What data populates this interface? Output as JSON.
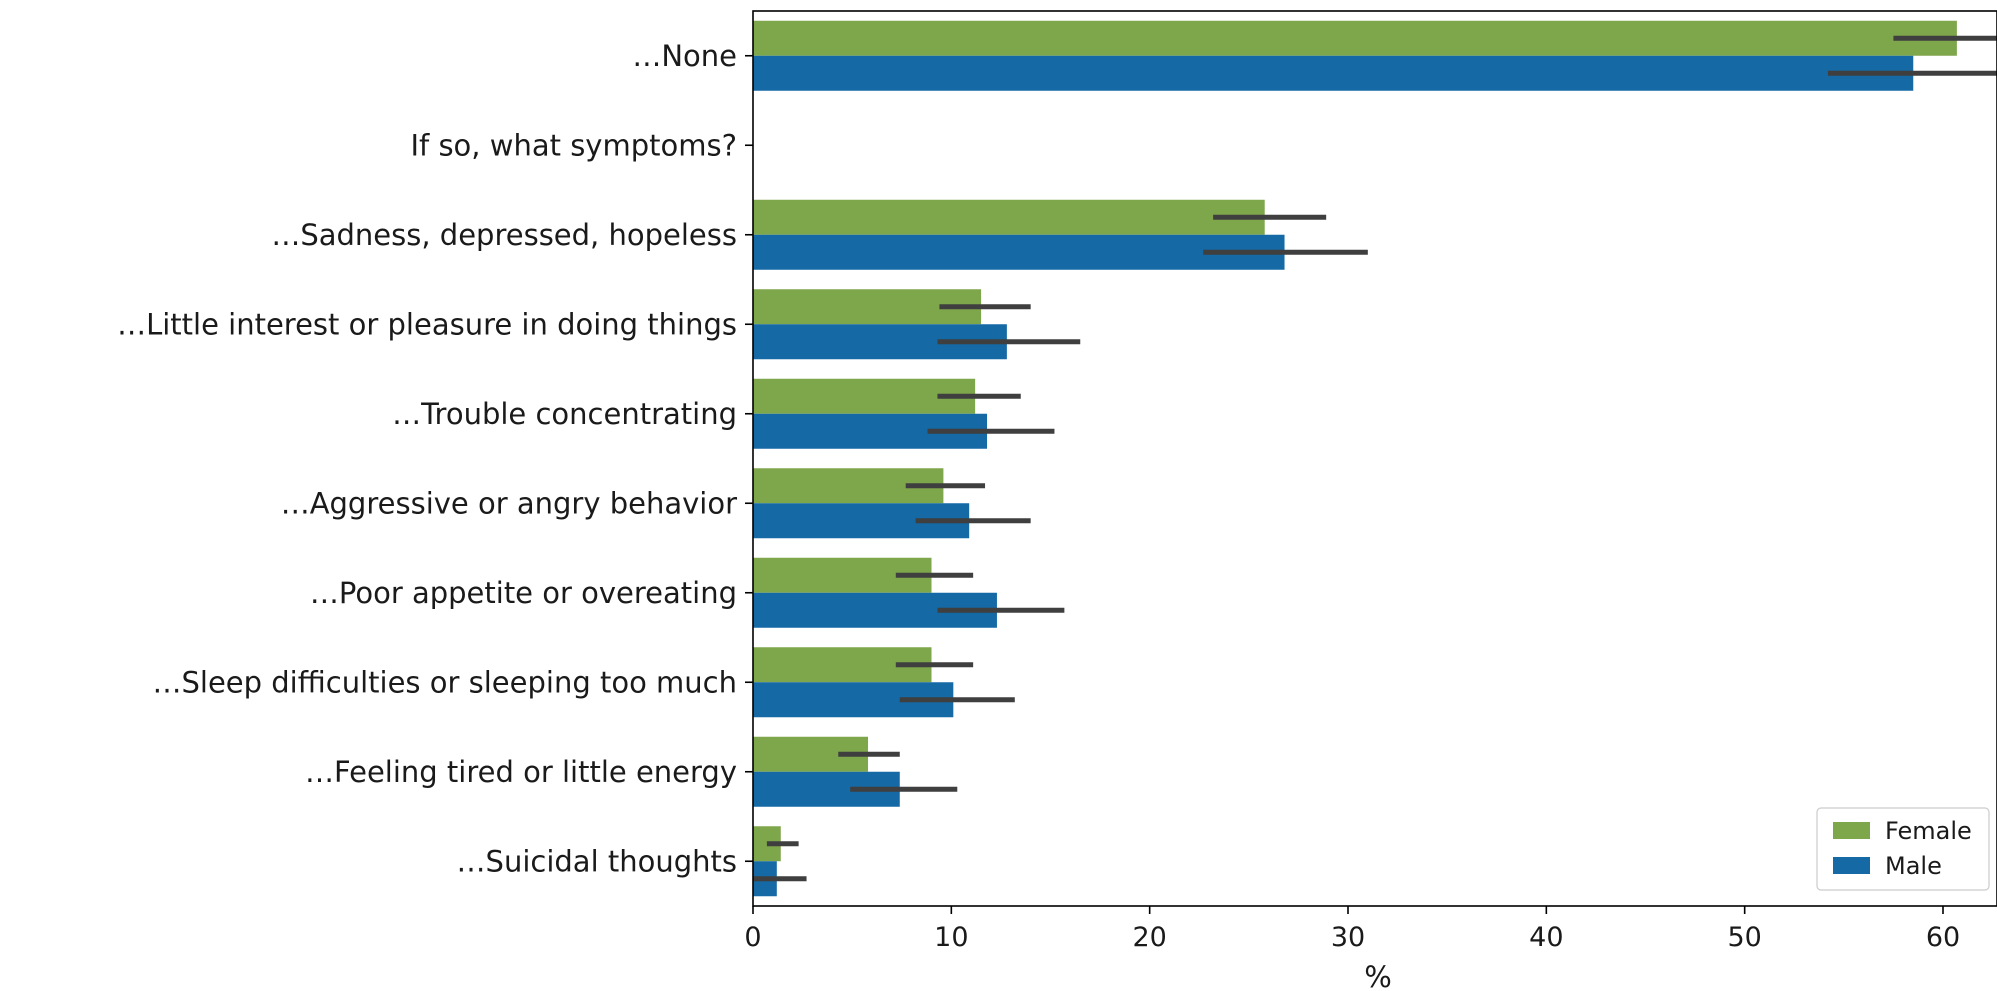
{
  "chart_data": {
    "type": "bar",
    "orientation": "horizontal",
    "categories": [
      "…None",
      "If so, what symptoms?",
      "…Sadness, depressed, hopeless",
      "…Little interest or pleasure in doing things",
      "…Trouble concentrating",
      "…Aggressive or angry behavior",
      "…Poor appetite or overeating",
      "…Sleep difficulties or sleeping too much",
      "…Feeling tired or little energy",
      "…Suicidal thoughts"
    ],
    "series": [
      {
        "name": "Female",
        "color": "#7ea64b",
        "values": [
          60.7,
          null,
          25.8,
          11.5,
          11.2,
          9.6,
          9.0,
          9.0,
          5.8,
          1.4
        ],
        "err_low": [
          57.5,
          null,
          23.2,
          9.4,
          9.3,
          7.7,
          7.2,
          7.2,
          4.3,
          0.7
        ],
        "err_high": [
          63.8,
          null,
          28.9,
          14.0,
          13.5,
          11.7,
          11.1,
          11.1,
          7.4,
          2.3
        ]
      },
      {
        "name": "Male",
        "color": "#1569a5",
        "values": [
          58.5,
          null,
          26.8,
          12.8,
          11.8,
          10.9,
          12.3,
          10.1,
          7.4,
          1.2
        ],
        "err_low": [
          54.2,
          null,
          22.7,
          9.3,
          8.8,
          8.2,
          9.3,
          7.4,
          4.9,
          0.0
        ],
        "err_high": [
          63.5,
          null,
          31.0,
          16.5,
          15.2,
          14.0,
          15.7,
          13.2,
          10.3,
          2.7
        ]
      }
    ],
    "xlabel": "%",
    "xlim": [
      0,
      66
    ],
    "xticks": [
      0,
      10,
      20,
      30,
      40,
      50,
      60
    ],
    "legend_position": "bottom-right",
    "grid": false
  }
}
